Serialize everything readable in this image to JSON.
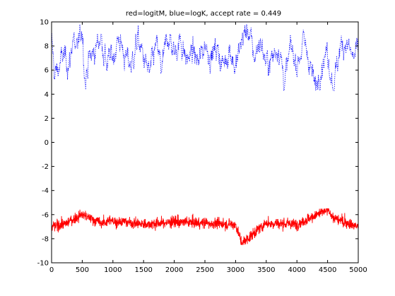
{
  "chart_data": {
    "type": "line",
    "title": "red=logitM, blue=logK, accept rate = 0.449",
    "xlabel": "",
    "ylabel": "",
    "xlim": [
      0,
      5000
    ],
    "ylim": [
      -10,
      10
    ],
    "grid": false,
    "x_ticks": [
      0,
      500,
      1000,
      1500,
      2000,
      2500,
      3000,
      3500,
      4000,
      4500,
      5000
    ],
    "y_ticks": [
      -10,
      -8,
      -6,
      -4,
      -2,
      0,
      2,
      4,
      6,
      8,
      10
    ],
    "series": [
      {
        "name": "logK",
        "color": "#0000ff",
        "style": "dotted",
        "n": 5000,
        "start": 8.5,
        "mean": 6.8,
        "range": [
          4.3,
          9.8
        ],
        "approx_trace": [
          [
            0,
            8.5
          ],
          [
            50,
            5.5
          ],
          [
            100,
            6.0
          ],
          [
            200,
            7.2
          ],
          [
            300,
            6.5
          ],
          [
            350,
            9.0
          ],
          [
            400,
            7.0
          ],
          [
            500,
            9.7
          ],
          [
            550,
            5.0
          ],
          [
            600,
            6.8
          ],
          [
            700,
            7.5
          ],
          [
            800,
            8.9
          ],
          [
            900,
            6.5
          ],
          [
            1000,
            7.2
          ],
          [
            1100,
            8.7
          ],
          [
            1200,
            7.0
          ],
          [
            1300,
            6.4
          ],
          [
            1400,
            8.5
          ],
          [
            1500,
            7.0
          ],
          [
            1600,
            5.5
          ],
          [
            1700,
            8.0
          ],
          [
            1800,
            6.0
          ],
          [
            1900,
            9.0
          ],
          [
            2000,
            7.3
          ],
          [
            2100,
            8.6
          ],
          [
            2200,
            6.8
          ],
          [
            2300,
            7.5
          ],
          [
            2400,
            6.5
          ],
          [
            2500,
            8.3
          ],
          [
            2600,
            7.2
          ],
          [
            2700,
            7.8
          ],
          [
            2800,
            6.3
          ],
          [
            2900,
            8.0
          ],
          [
            3000,
            6.0
          ],
          [
            3100,
            8.5
          ],
          [
            3200,
            9.5
          ],
          [
            3300,
            7.0
          ],
          [
            3400,
            8.5
          ],
          [
            3500,
            6.5
          ],
          [
            3600,
            7.0
          ],
          [
            3700,
            8.2
          ],
          [
            3800,
            5.0
          ],
          [
            3900,
            7.8
          ],
          [
            4000,
            6.5
          ],
          [
            4100,
            8.3
          ],
          [
            4200,
            7.0
          ],
          [
            4300,
            4.3
          ],
          [
            4400,
            6.8
          ],
          [
            4500,
            7.5
          ],
          [
            4600,
            4.7
          ],
          [
            4700,
            7.8
          ],
          [
            4800,
            8.5
          ],
          [
            4900,
            7.0
          ],
          [
            5000,
            7.3
          ]
        ]
      },
      {
        "name": "logitM",
        "color": "#ff0000",
        "style": "solid",
        "n": 5000,
        "start": -7.0,
        "mean": -6.8,
        "range": [
          -8.5,
          -5.5
        ],
        "approx_trace": [
          [
            0,
            -7.0
          ],
          [
            200,
            -6.8
          ],
          [
            500,
            -6.0
          ],
          [
            800,
            -6.7
          ],
          [
            1000,
            -6.5
          ],
          [
            1500,
            -6.8
          ],
          [
            2000,
            -6.6
          ],
          [
            2500,
            -6.7
          ],
          [
            3000,
            -6.8
          ],
          [
            3100,
            -8.4
          ],
          [
            3500,
            -6.7
          ],
          [
            4000,
            -6.8
          ],
          [
            4500,
            -5.6
          ],
          [
            4600,
            -6.3
          ],
          [
            5000,
            -7.0
          ]
        ]
      }
    ]
  }
}
